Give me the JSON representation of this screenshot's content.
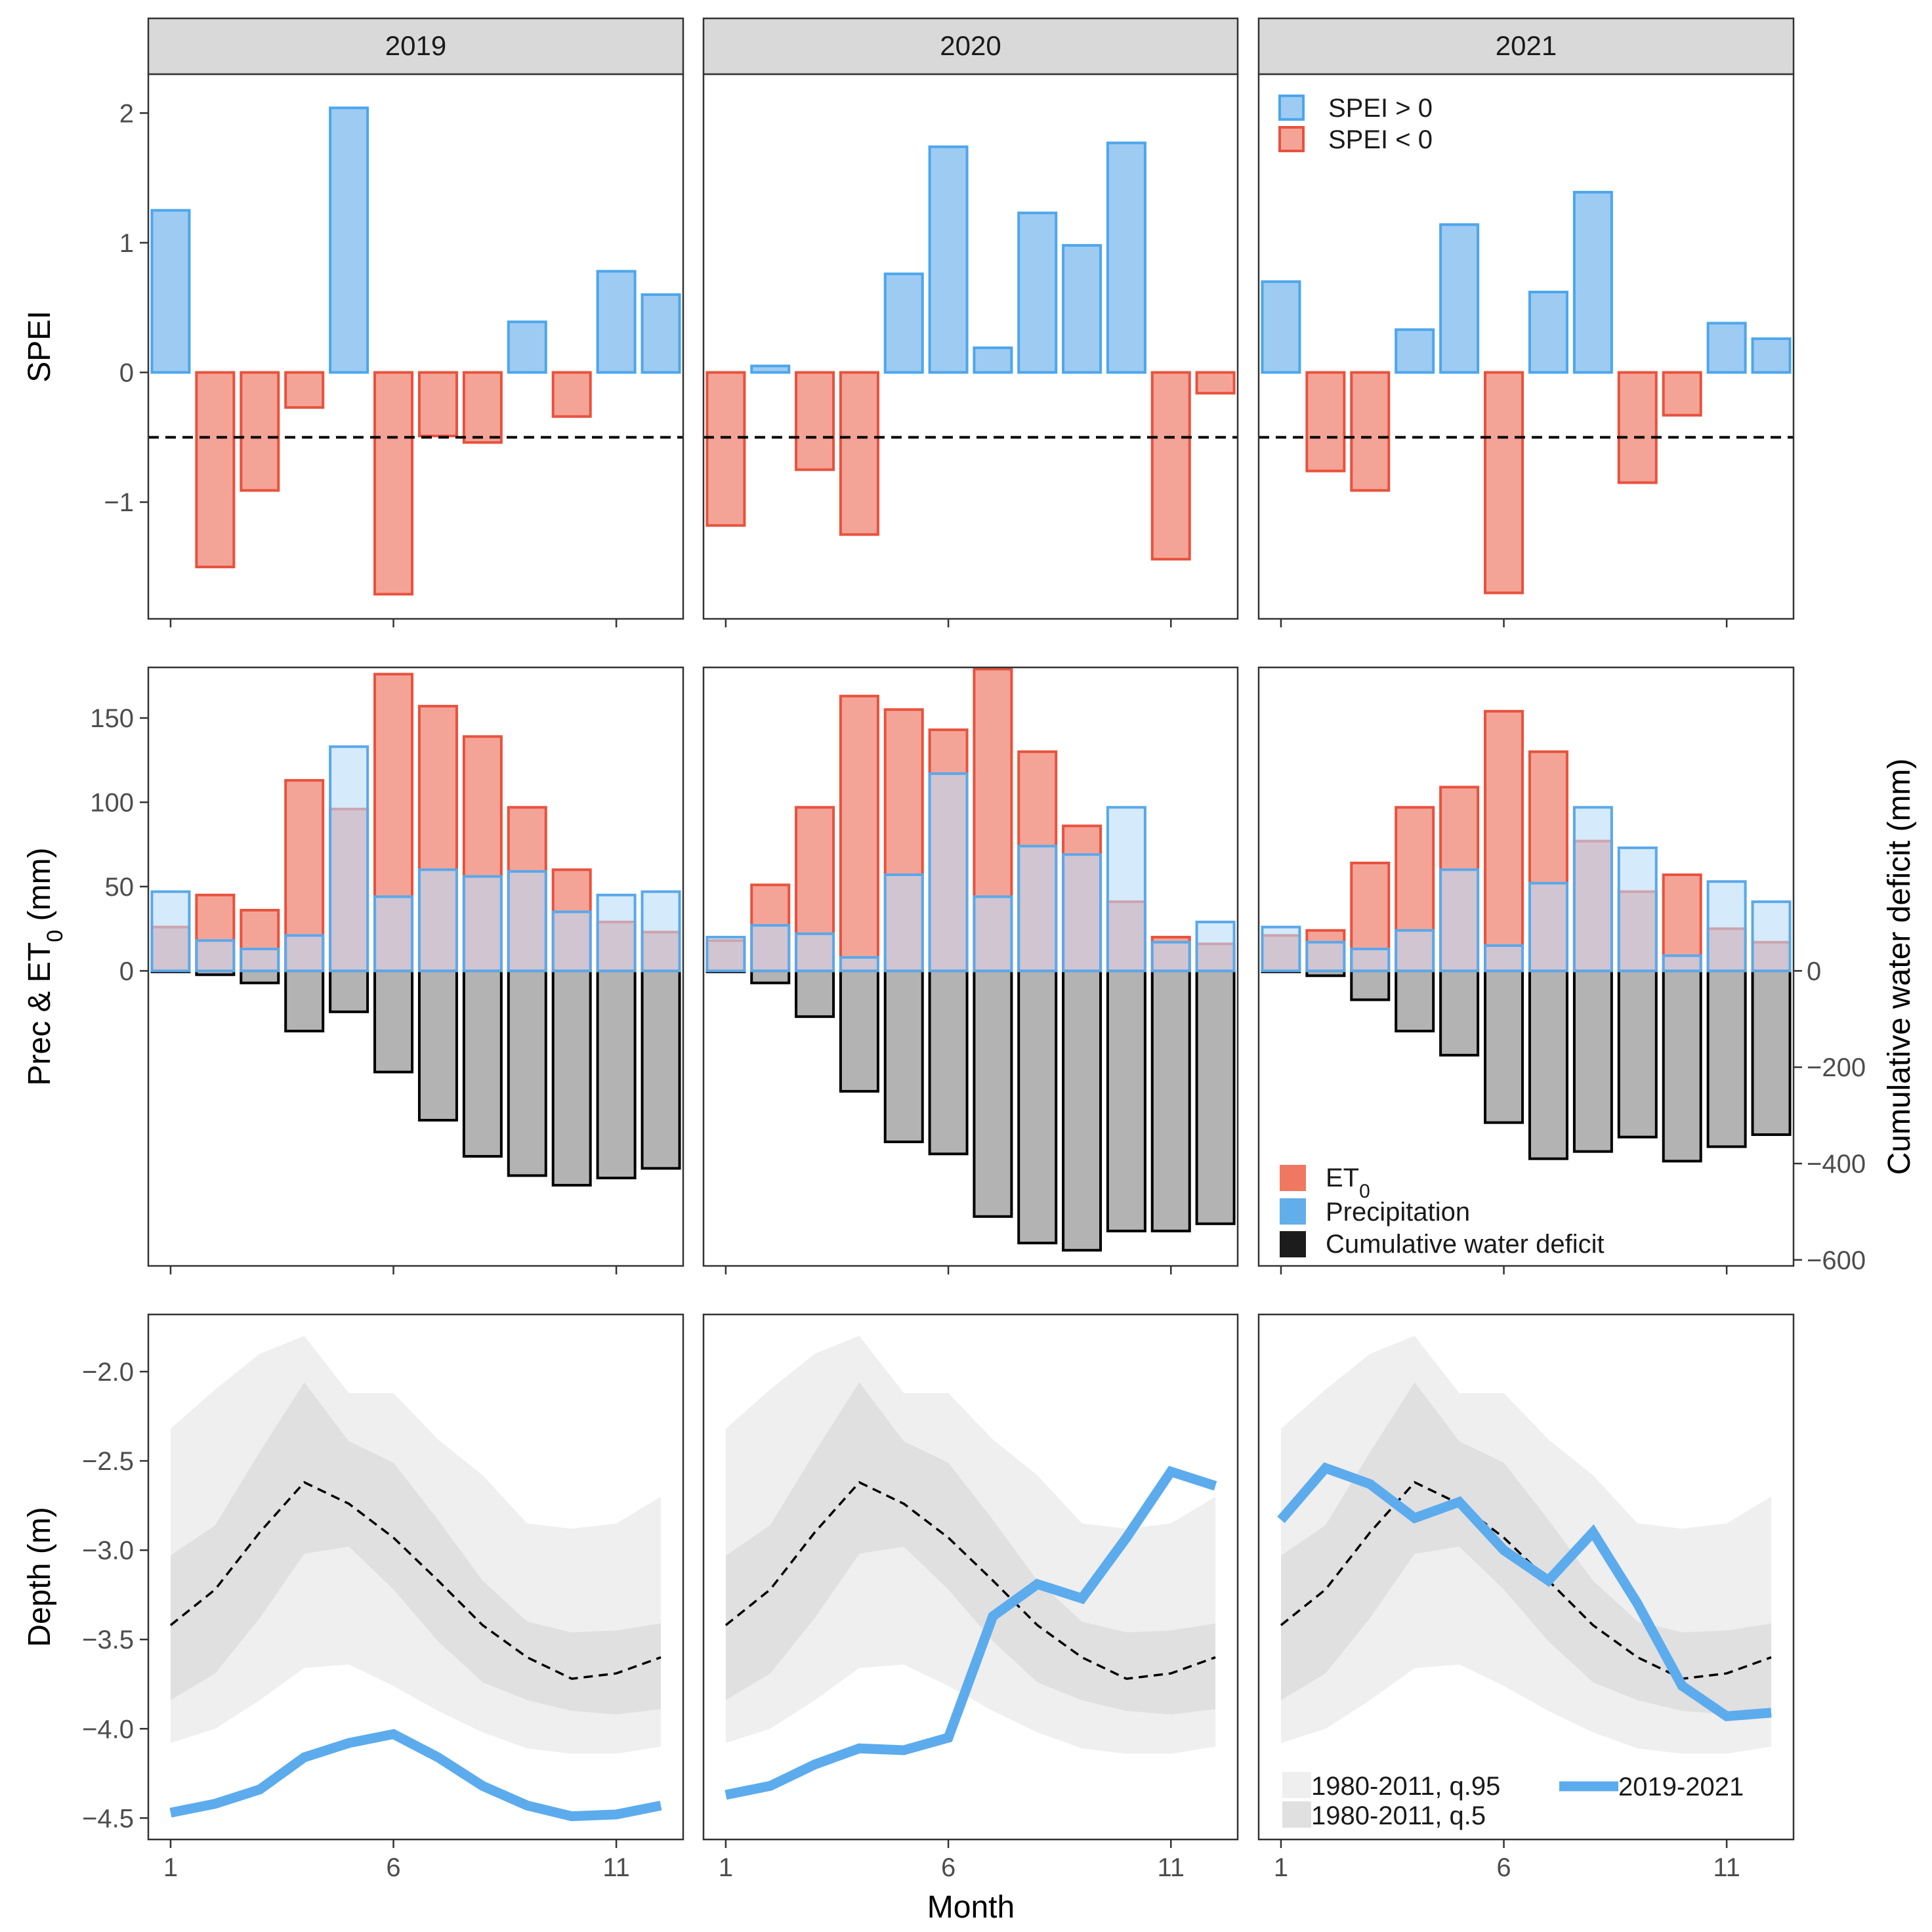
{
  "colors": {
    "spei_pos_fill": "#9ecbf2",
    "spei_pos_stroke": "#4da6ec",
    "spei_neg_fill": "#f4a497",
    "spei_neg_stroke": "#e8523e",
    "et0_fill": "#f4a497",
    "et0_stroke": "#e8523e",
    "prec_fill": "#b9dcf8",
    "prec_stroke": "#5aa8ea",
    "cwd_fill": "#b3b3b3",
    "cwd_stroke": "#000000",
    "q95_band": "#efefef",
    "q5_band": "#e0e0e0",
    "line_2019_2021": "#5caced",
    "legend_et0": "#f07860",
    "legend_prec": "#62aeea",
    "legend_cwd": "#1c1c1c",
    "strip_fill": "#d9d9d9"
  },
  "chart_data": [
    {
      "type": "bar",
      "panel": "spei",
      "ylabel": "SPEI",
      "ylim": [
        -1.9,
        2.3
      ],
      "yticks": [
        2,
        1,
        0,
        -1
      ],
      "ytick_labels": [
        "2",
        "1",
        "0",
        "−1"
      ],
      "threshold": -0.5,
      "legend": {
        "pos_label": "SPEI > 0",
        "neg_label": "SPEI < 0",
        "placement": "top-left of 2021 panel"
      },
      "facets": [
        {
          "year": "2019",
          "values": [
            1.25,
            -1.5,
            -0.91,
            -0.27,
            2.04,
            -1.71,
            -0.49,
            -0.54,
            0.39,
            -0.34,
            0.78,
            0.6
          ]
        },
        {
          "year": "2020",
          "values": [
            -1.18,
            0.05,
            -0.75,
            -1.25,
            0.76,
            1.74,
            0.19,
            1.23,
            0.98,
            1.77,
            -1.44,
            -0.16
          ]
        },
        {
          "year": "2021",
          "values": [
            0.7,
            -0.76,
            -0.91,
            0.33,
            1.14,
            -1.7,
            0.62,
            1.39,
            -0.85,
            -0.33,
            0.38,
            0.26
          ]
        }
      ]
    },
    {
      "type": "bar",
      "panel": "water_balance",
      "ylabel_main": "Prec & ET",
      "ylabel_sub": "0",
      "ylabel_unit": " (mm)",
      "ylabel_right": "Cumulative water deficit (mm)",
      "ylim": [
        -175,
        180
      ],
      "yticks": [
        150,
        100,
        50,
        0
      ],
      "ytick_labels": [
        "150",
        "100",
        "50",
        "0"
      ],
      "yticks_right": [
        0,
        -200,
        -400,
        -600
      ],
      "ytick_labels_right": [
        "0",
        "−200",
        "−400",
        "−600"
      ],
      "cwd_scale_note": "right axis: deficit mm = left units x 3.5",
      "legend": {
        "et0_main": "ET",
        "et0_sub": "0",
        "prec_label": "Precipitation",
        "cwd_label": "Cumulative water deficit",
        "placement": "bottom-left of 2021 panel"
      },
      "facets": [
        {
          "year": "2019",
          "et0": [
            26,
            45,
            36,
            113,
            96,
            176,
            157,
            139,
            97,
            60,
            29,
            23
          ],
          "precipitation": [
            47,
            18,
            13,
            21,
            133,
            44,
            60,
            56,
            59,
            35,
            45,
            47
          ],
          "cwd": [
            0,
            -8,
            -25,
            -125,
            -85,
            -210,
            -310,
            -385,
            -425,
            -445,
            -430,
            -410
          ]
        },
        {
          "year": "2020",
          "et0": [
            18,
            51,
            97,
            163,
            155,
            143,
            179,
            130,
            86,
            41,
            20,
            16
          ],
          "precipitation": [
            20,
            27,
            22,
            8,
            57,
            117,
            44,
            74,
            69,
            97,
            17,
            29
          ],
          "cwd": [
            0,
            -25,
            -95,
            -250,
            -355,
            -380,
            -510,
            -565,
            -580,
            -540,
            -540,
            -525
          ]
        },
        {
          "year": "2021",
          "et0": [
            21,
            24,
            64,
            97,
            109,
            154,
            130,
            77,
            47,
            57,
            25,
            17
          ],
          "precipitation": [
            26,
            17,
            13,
            24,
            60,
            15,
            52,
            97,
            73,
            9,
            53,
            41
          ],
          "cwd": [
            0,
            -10,
            -60,
            -125,
            -175,
            -315,
            -390,
            -375,
            -345,
            -395,
            -365,
            -340
          ]
        }
      ]
    },
    {
      "type": "line",
      "panel": "groundwater",
      "ylabel": "Depth (m)",
      "xlabel": "Month",
      "ylim": [
        -4.62,
        -1.68
      ],
      "yticks": [
        -2.0,
        -2.5,
        -3.0,
        -3.5,
        -4.0,
        -4.5
      ],
      "ytick_labels": [
        "−2.0",
        "−2.5",
        "−3.0",
        "−3.5",
        "−4.0",
        "−4.5"
      ],
      "x": [
        1,
        2,
        3,
        4,
        5,
        6,
        7,
        8,
        9,
        10,
        11,
        12
      ],
      "xlim": [
        0.5,
        12.5
      ],
      "xticks": [
        1,
        6,
        11
      ],
      "xtick_labels": [
        "1",
        "6",
        "11"
      ],
      "climatology": {
        "median": [
          -3.42,
          -3.22,
          -2.9,
          -2.62,
          -2.74,
          -2.93,
          -3.17,
          -3.42,
          -3.6,
          -3.72,
          -3.69,
          -3.6
        ],
        "q95_upper": [
          -2.32,
          -2.1,
          -1.9,
          -1.8,
          -2.12,
          -2.12,
          -2.38,
          -2.58,
          -2.85,
          -2.88,
          -2.85,
          -2.7
        ],
        "q95_lower": [
          -4.08,
          -4.0,
          -3.84,
          -3.66,
          -3.64,
          -3.76,
          -3.9,
          -4.02,
          -4.11,
          -4.14,
          -4.14,
          -4.1
        ],
        "q5_upper": [
          -3.03,
          -2.86,
          -2.45,
          -2.06,
          -2.39,
          -2.51,
          -2.83,
          -3.17,
          -3.4,
          -3.46,
          -3.45,
          -3.41
        ],
        "q5_lower": [
          -3.84,
          -3.69,
          -3.38,
          -3.02,
          -2.98,
          -3.22,
          -3.51,
          -3.74,
          -3.84,
          -3.9,
          -3.92,
          -3.89
        ]
      },
      "legend": {
        "q95_label": "1980-2011, q.95",
        "q5_label": "1980-2011, q.5",
        "series_label": "2019-2021",
        "placement": "bottom of 2021 panel"
      },
      "facets": [
        {
          "year": "2019",
          "depth": [
            -4.47,
            -4.42,
            -4.34,
            -4.16,
            -4.08,
            -4.03,
            -4.16,
            -4.32,
            -4.43,
            -4.49,
            -4.48,
            -4.43
          ]
        },
        {
          "year": "2020",
          "depth": [
            -4.37,
            -4.32,
            -4.2,
            -4.11,
            -4.12,
            -4.05,
            -3.37,
            -3.19,
            -3.27,
            -2.93,
            -2.56,
            -2.64
          ]
        },
        {
          "year": "2021",
          "depth": [
            -2.83,
            -2.54,
            -2.63,
            -2.82,
            -2.73,
            -3.0,
            -3.17,
            -2.9,
            -3.3,
            -3.76,
            -3.93,
            -3.91
          ]
        }
      ]
    }
  ]
}
